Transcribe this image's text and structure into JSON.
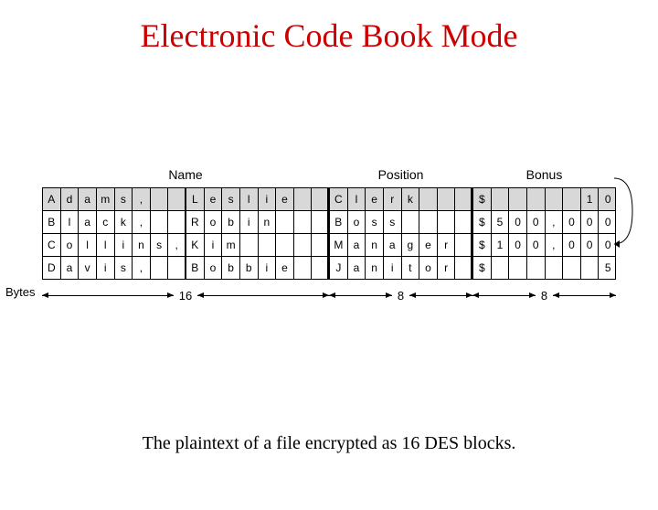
{
  "title": "Electronic Code Book Mode",
  "caption": "The plaintext of a file encrypted as 16 DES blocks.",
  "headers": {
    "name": "Name",
    "position": "Position",
    "bonus": "Bonus"
  },
  "bytes": {
    "label": "Bytes",
    "w1": "16",
    "w2": "8",
    "w3": "8"
  },
  "colors": {
    "title": "#cc0000",
    "highlight": "#d8d8d8",
    "text": "#000000",
    "background": "#ffffff"
  },
  "layout": {
    "block_count": 32,
    "name_cells": 16,
    "position_cells": 8,
    "bonus_cells": 8,
    "midname_split_at": 8
  },
  "rows": [
    {
      "highlight": true,
      "name": [
        "A",
        "d",
        "a",
        "m",
        "s",
        ",",
        "",
        "",
        "L",
        "e",
        "s",
        "l",
        "i",
        "e",
        "",
        ""
      ],
      "pos": [
        "C",
        "l",
        "e",
        "r",
        "k",
        "",
        "",
        ""
      ],
      "bonus": [
        "$",
        "",
        "",
        "",
        "",
        "",
        "1",
        "0"
      ]
    },
    {
      "highlight": false,
      "name": [
        "B",
        "l",
        "a",
        "c",
        "k",
        ",",
        "",
        "",
        "R",
        "o",
        "b",
        "i",
        "n",
        "",
        "",
        ""
      ],
      "pos": [
        "B",
        "o",
        "s",
        "s",
        "",
        "",
        "",
        ""
      ],
      "bonus": [
        "$",
        "5",
        "0",
        "0",
        ",",
        "0",
        "0",
        "0"
      ]
    },
    {
      "highlight": false,
      "name": [
        "C",
        "o",
        "l",
        "l",
        "i",
        "n",
        "s",
        ",",
        "K",
        "i",
        "m",
        "",
        "",
        "",
        "",
        ""
      ],
      "pos": [
        "M",
        "a",
        "n",
        "a",
        "g",
        "e",
        "r",
        ""
      ],
      "bonus": [
        "$",
        "1",
        "0",
        "0",
        ",",
        "0",
        "0",
        "0"
      ]
    },
    {
      "highlight": false,
      "name": [
        "D",
        "a",
        "v",
        "i",
        "s",
        ",",
        "",
        "",
        "B",
        "o",
        "b",
        "b",
        "i",
        "e",
        "",
        ""
      ],
      "pos": [
        "J",
        "a",
        "n",
        "i",
        "t",
        "o",
        "r",
        ""
      ],
      "bonus": [
        "$",
        "",
        "",
        "",
        "",
        "",
        "",
        "5"
      ]
    }
  ]
}
